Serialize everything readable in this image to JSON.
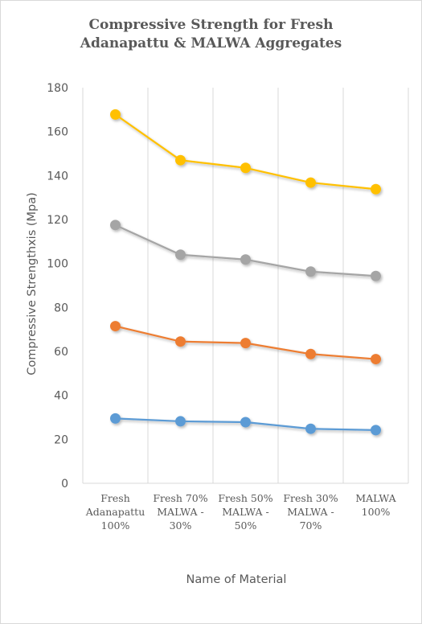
{
  "chart_data": {
    "type": "line",
    "title_lines": [
      "Compressive Strength for Fresh",
      "Adanapattu & MALWA Aggregates"
    ],
    "xlabel": "Name of Material",
    "ylabel": "Compressive Strengthxis (Mpa)",
    "categories": [
      [
        "Fresh",
        "Adanapattu",
        "100%"
      ],
      [
        "Fresh 70%",
        "MALWA -",
        "30%"
      ],
      [
        "Fresh 50%",
        "MALWA -",
        "50%"
      ],
      [
        "Fresh 30%",
        "MALWA -",
        "70%"
      ],
      [
        "MALWA",
        "100%"
      ]
    ],
    "ylim": [
      0,
      180
    ],
    "yticks": [
      0,
      20,
      40,
      60,
      80,
      100,
      120,
      140,
      160,
      180
    ],
    "grid": "vertical",
    "legend": "none",
    "series": [
      {
        "color": "#5b9bd5",
        "values": [
          29.5,
          28.2,
          27.8,
          24.8,
          24.2
        ]
      },
      {
        "color": "#ed7d31",
        "values": [
          71.5,
          64.5,
          63.8,
          58.8,
          56.5
        ]
      },
      {
        "color": "#a5a5a5",
        "values": [
          117.5,
          104.0,
          101.8,
          96.3,
          94.3
        ]
      },
      {
        "color": "#ffc000",
        "values": [
          167.8,
          147.0,
          143.5,
          136.8,
          133.8
        ]
      }
    ]
  }
}
